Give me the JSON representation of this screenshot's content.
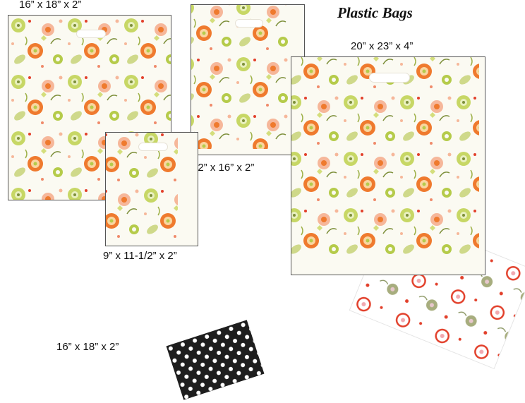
{
  "title": "Plastic Bags",
  "colors": {
    "lime": "#b5cb4a",
    "orange": "#ef7a2e",
    "peach": "#f6b79a",
    "olive": "#7d8f3a",
    "red": "#e2402b",
    "cream": "#fbfaf2",
    "black": "#1e1e1e"
  },
  "bags": [
    {
      "id": "bag-16x18",
      "size_label": "16” x 18” x 2”"
    },
    {
      "id": "bag-12x16",
      "size_label": "12” x 16” x 2”"
    },
    {
      "id": "bag-9x11",
      "size_label": "9” x 11-1/2” x 2”"
    },
    {
      "id": "bag-20x23",
      "size_label": "20” x 23” x 4”"
    },
    {
      "id": "bag-16x18-black",
      "size_label": "16” x 18” x 2”"
    }
  ]
}
